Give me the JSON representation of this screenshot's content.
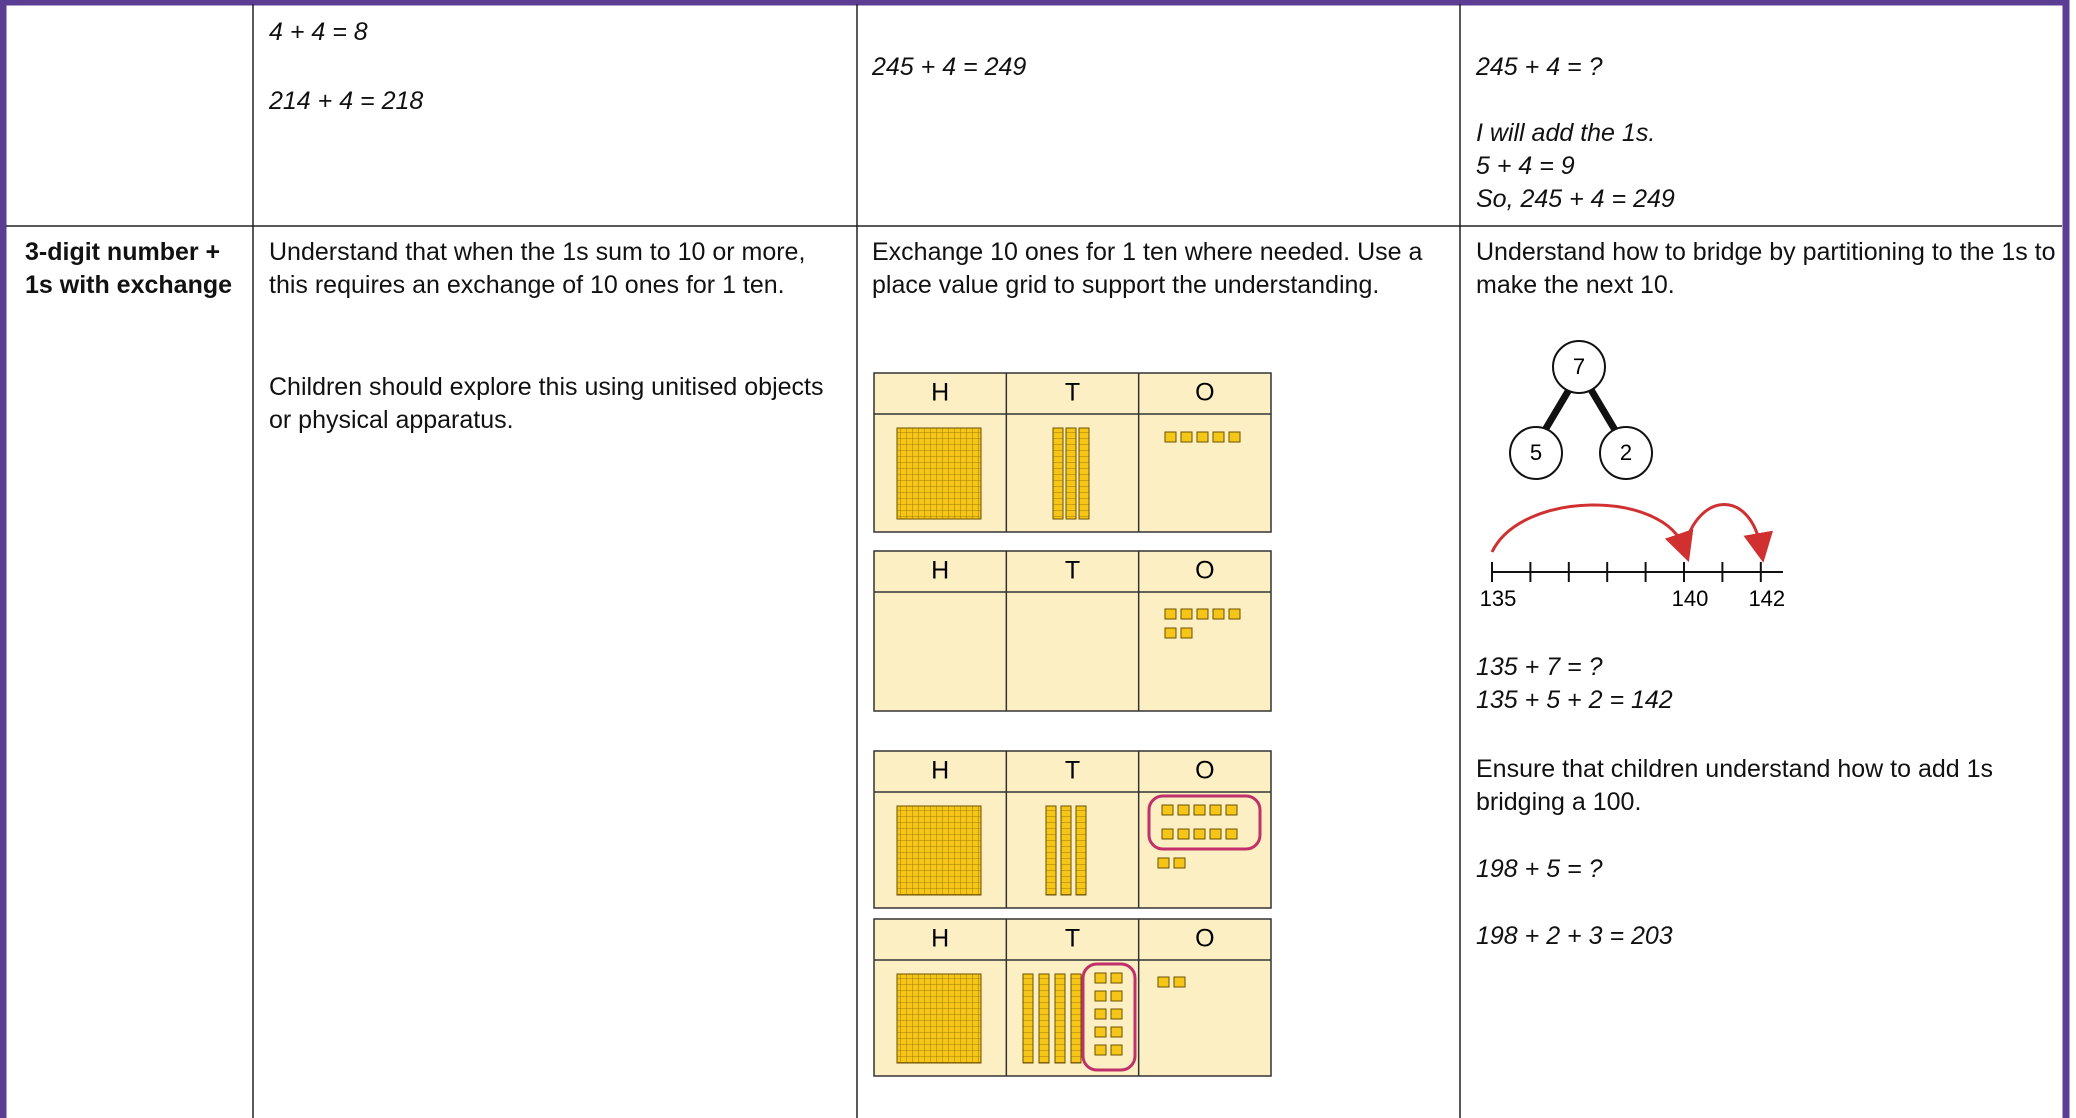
{
  "table": {
    "rows": [
      {
        "method": [
          "4 + 4 = 8",
          "214 + 4 = 218"
        ],
        "representation": [
          "245 + 4 = 249"
        ],
        "notes": [
          "245 + 4 = ?",
          "I will add the 1s.",
          "5 + 4 = 9",
          "So, 245 + 4 = 249"
        ]
      },
      {
        "heading": "3-digit number + 1s with exchange",
        "method": [
          "Understand that when the 1s sum to 10 or more, this requires an exchange of 10 ones for 1 ten.",
          "Children should explore this using unitised objects or physical apparatus."
        ],
        "representation": {
          "text": "Exchange 10 ones for 1 ten where needed. Use a place value grid to support the understanding.",
          "grid_headers": [
            "H",
            "T",
            "O"
          ]
        },
        "notes": {
          "text": "Understand how to bridge by partitioning to the 1s to make the next 10.",
          "part_whole": [
            "7",
            "5",
            "2"
          ],
          "number_line": [
            "135",
            "140",
            "142"
          ],
          "lines": [
            "135 + 7 = ?",
            "135 + 5 + 2 = 142",
            "Ensure that children understand how to add 1s bridging a 100.",
            "198 + 5 = ?",
            "198 + 2 + 3 = 203"
          ]
        }
      }
    ]
  }
}
